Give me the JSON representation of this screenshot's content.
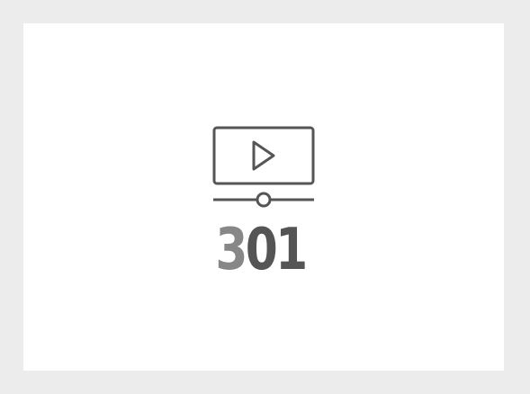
{
  "colors": {
    "background": "#ececec",
    "card": "#ffffff",
    "icon_stroke": "#555555",
    "digit_light": "#878787",
    "digit_dark": "#555555"
  },
  "icon": "video-player-icon",
  "status_code": {
    "first": "3",
    "middle": "0",
    "last": "1"
  }
}
